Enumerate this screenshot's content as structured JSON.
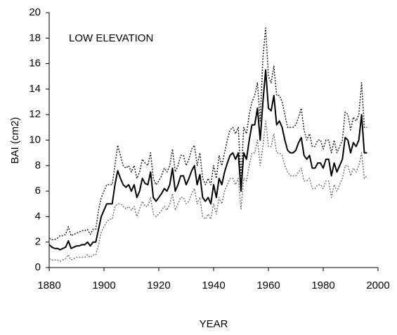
{
  "chart_data": {
    "type": "line",
    "annotation": "LOW ELEVATION",
    "x_label": "YEAR",
    "y_label": "BAI (cm2)",
    "xlim": [
      1880,
      2000
    ],
    "xticks": [
      1880,
      1900,
      1920,
      1940,
      1960,
      1980,
      2000
    ],
    "ylim": [
      0,
      20
    ],
    "yticks": [
      0,
      2,
      4,
      6,
      8,
      10,
      12,
      14,
      16,
      18,
      20
    ],
    "grid": false,
    "x": [
      1880,
      1881,
      1882,
      1883,
      1884,
      1885,
      1886,
      1887,
      1888,
      1889,
      1890,
      1891,
      1892,
      1893,
      1894,
      1895,
      1896,
      1897,
      1898,
      1899,
      1900,
      1901,
      1902,
      1903,
      1904,
      1905,
      1906,
      1907,
      1908,
      1909,
      1910,
      1911,
      1912,
      1913,
      1914,
      1915,
      1916,
      1917,
      1918,
      1919,
      1920,
      1921,
      1922,
      1923,
      1924,
      1925,
      1926,
      1927,
      1928,
      1929,
      1930,
      1931,
      1932,
      1933,
      1934,
      1935,
      1936,
      1937,
      1938,
      1939,
      1940,
      1941,
      1942,
      1943,
      1944,
      1945,
      1946,
      1947,
      1948,
      1949,
      1950,
      1951,
      1952,
      1953,
      1954,
      1955,
      1956,
      1957,
      1958,
      1959,
      1960,
      1961,
      1962,
      1963,
      1964,
      1965,
      1966,
      1967,
      1968,
      1969,
      1970,
      1971,
      1972,
      1973,
      1974,
      1975,
      1976,
      1977,
      1978,
      1979,
      1980,
      1981,
      1982,
      1983,
      1984,
      1985,
      1986,
      1987,
      1988,
      1989,
      1990,
      1991,
      1992,
      1993,
      1994,
      1995,
      1996
    ],
    "series": [
      {
        "color": "#000000",
        "dash": "solid",
        "width": 2,
        "values": [
          1.8,
          1.6,
          1.5,
          1.5,
          1.4,
          1.5,
          1.6,
          2.1,
          1.5,
          1.6,
          1.7,
          1.7,
          1.8,
          1.8,
          2.0,
          1.7,
          2.0,
          2.0,
          3.0,
          4.0,
          4.5,
          5.0,
          5.0,
          5.0,
          6.5,
          7.6,
          7.0,
          6.5,
          6.3,
          6.5,
          6.0,
          6.5,
          5.5,
          6.0,
          7.0,
          6.6,
          6.5,
          7.5,
          5.5,
          5.2,
          5.5,
          5.8,
          6.2,
          6.0,
          6.5,
          7.8,
          6.0,
          6.5,
          7.2,
          7.2,
          6.5,
          7.0,
          7.6,
          8.0,
          6.5,
          7.3,
          5.5,
          5.2,
          5.5,
          5.0,
          6.5,
          5.5,
          7.0,
          6.5,
          7.5,
          8.2,
          8.8,
          9.0,
          8.5,
          9.0,
          6.0,
          9.0,
          8.5,
          10.0,
          11.2,
          11.2,
          12.5,
          10.0,
          13.0,
          15.5,
          12.5,
          12.3,
          13.5,
          11.2,
          11.5,
          11.0,
          10.0,
          9.2,
          9.0,
          9.0,
          9.2,
          9.8,
          10.2,
          8.8,
          8.5,
          8.8,
          7.8,
          7.8,
          8.2,
          8.2,
          7.8,
          8.5,
          8.5,
          7.2,
          8.2,
          7.5,
          8.0,
          8.5,
          10.2,
          10.0,
          9.0,
          9.8,
          9.5,
          10.0,
          12.0,
          9.0,
          9.0
        ]
      },
      {
        "color": "#222222",
        "dash": "dotted",
        "width": 1.5,
        "values": [
          2.3,
          2.2,
          2.2,
          2.3,
          2.5,
          2.5,
          2.6,
          3.2,
          2.5,
          2.6,
          2.7,
          2.8,
          2.9,
          2.9,
          3.0,
          2.6,
          3.0,
          3.0,
          4.5,
          5.5,
          6.0,
          6.5,
          6.5,
          6.5,
          8.0,
          9.6,
          8.8,
          8.0,
          7.8,
          8.0,
          7.5,
          8.0,
          7.0,
          7.5,
          8.5,
          8.2,
          8.0,
          9.0,
          7.0,
          6.5,
          6.8,
          7.2,
          7.8,
          7.5,
          8.0,
          9.3,
          7.5,
          8.0,
          8.8,
          8.8,
          8.0,
          8.5,
          9.3,
          9.6,
          8.0,
          9.0,
          7.0,
          6.5,
          7.0,
          6.5,
          8.0,
          7.0,
          8.8,
          8.0,
          9.0,
          10.0,
          10.8,
          11.0,
          10.5,
          11.0,
          7.0,
          11.0,
          10.5,
          12.0,
          13.0,
          13.5,
          14.5,
          11.5,
          16.5,
          18.8,
          15.0,
          14.5,
          15.8,
          13.5,
          13.5,
          13.0,
          12.0,
          11.0,
          11.0,
          11.0,
          11.2,
          11.8,
          12.5,
          10.8,
          10.0,
          10.5,
          9.5,
          9.5,
          10.0,
          10.0,
          9.3,
          10.0,
          10.0,
          9.0,
          10.0,
          9.0,
          9.5,
          10.0,
          12.2,
          12.0,
          10.8,
          11.8,
          11.5,
          12.0,
          14.5,
          11.0,
          11.0
        ]
      },
      {
        "color": "#777777",
        "dash": "dotted",
        "width": 1.5,
        "values": [
          0.7,
          0.6,
          0.6,
          0.6,
          0.5,
          0.6,
          0.7,
          1.0,
          0.6,
          0.7,
          0.8,
          0.8,
          0.8,
          0.8,
          1.0,
          0.8,
          1.0,
          1.0,
          1.8,
          2.8,
          3.2,
          3.6,
          3.8,
          3.8,
          4.8,
          5.0,
          5.0,
          4.8,
          4.6,
          4.8,
          4.5,
          4.8,
          4.0,
          4.6,
          5.2,
          4.8,
          4.8,
          5.5,
          4.2,
          4.0,
          4.2,
          4.5,
          4.8,
          4.5,
          5.0,
          5.8,
          4.5,
          5.0,
          5.5,
          5.5,
          5.0,
          5.2,
          5.8,
          6.2,
          5.0,
          5.5,
          4.0,
          3.8,
          4.2,
          3.8,
          5.0,
          4.2,
          5.5,
          5.0,
          6.0,
          6.5,
          7.0,
          7.0,
          6.5,
          7.0,
          4.6,
          7.0,
          6.8,
          8.0,
          9.0,
          9.0,
          10.0,
          8.0,
          9.5,
          11.5,
          9.5,
          9.5,
          10.5,
          9.0,
          9.0,
          8.8,
          8.0,
          7.5,
          7.2,
          7.2,
          7.2,
          7.5,
          7.8,
          6.8,
          6.8,
          7.0,
          6.2,
          6.2,
          6.5,
          6.5,
          6.2,
          6.8,
          6.8,
          5.5,
          6.5,
          6.0,
          6.5,
          7.0,
          8.0,
          8.0,
          7.2,
          7.8,
          7.5,
          8.0,
          9.0,
          7.0,
          7.2
        ]
      }
    ]
  }
}
